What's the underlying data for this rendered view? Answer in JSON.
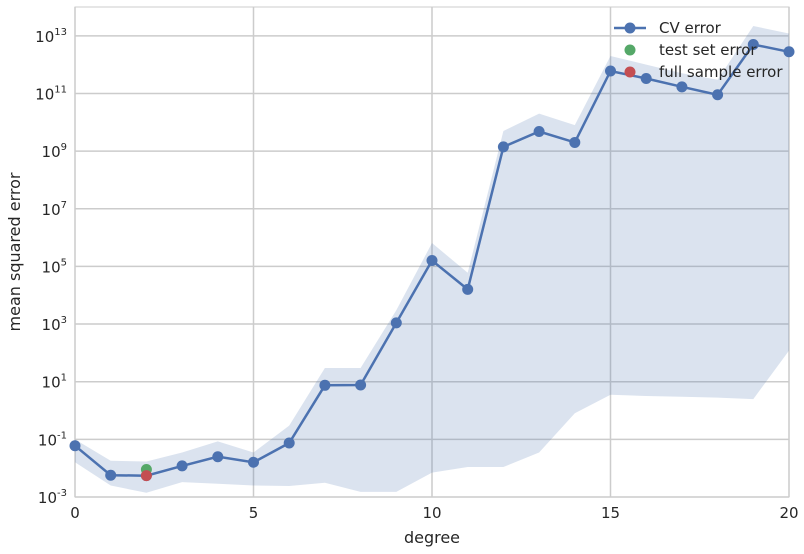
{
  "chart_data": {
    "type": "line",
    "xlabel": "degree",
    "ylabel": "mean squared error",
    "xlim": [
      0,
      20
    ],
    "ylim": [
      0.001,
      100000000000000
    ],
    "yscale": "log",
    "grid": true,
    "legend_position": "top-right",
    "x_ticks": [
      "0",
      "5",
      "10",
      "15",
      "20"
    ],
    "y_ticks": [
      {
        "base": "10",
        "exp": "-3"
      },
      {
        "base": "10",
        "exp": "-1"
      },
      {
        "base": "10",
        "exp": "1"
      },
      {
        "base": "10",
        "exp": "3"
      },
      {
        "base": "10",
        "exp": "5"
      },
      {
        "base": "10",
        "exp": "7"
      },
      {
        "base": "10",
        "exp": "9"
      },
      {
        "base": "10",
        "exp": "11"
      },
      {
        "base": "10",
        "exp": "13"
      }
    ],
    "series": [
      {
        "name": "CV error",
        "color": "#4c72b0",
        "x": [
          0,
          1,
          2,
          3,
          4,
          5,
          6,
          7,
          8,
          9,
          10,
          11,
          12,
          13,
          14,
          15,
          16,
          17,
          18,
          19,
          20
        ],
        "y": [
          0.06,
          0.0057,
          0.0055,
          0.012,
          0.025,
          0.016,
          0.075,
          7.5,
          7.7,
          1100,
          160000,
          16000,
          1400000000,
          4800000000,
          2000000000,
          600000000000,
          330000000000,
          170000000000,
          90000000000,
          5000000000000,
          2800000000000
        ],
        "band_lower": [
          0.016,
          0.0025,
          0.0014,
          0.0033,
          0.0029,
          0.0025,
          0.0024,
          0.0031,
          0.0015,
          0.0015,
          0.007,
          0.011,
          0.011,
          0.035,
          0.8,
          3.5,
          3.2,
          3.0,
          2.8,
          2.5,
          120
        ],
        "band_upper": [
          0.1,
          0.018,
          0.017,
          0.035,
          0.085,
          0.035,
          0.3,
          30,
          30,
          3000,
          650000,
          60000,
          5000000000,
          20000000000,
          8000000000,
          2000000000000,
          1000000000000,
          500000000000,
          300000000000,
          22000000000000,
          12000000000000
        ]
      },
      {
        "name": "test set error",
        "color": "#55a868",
        "x": [
          2
        ],
        "y": [
          0.009
        ]
      },
      {
        "name": "full sample error",
        "color": "#c44e52",
        "x": [
          2
        ],
        "y": [
          0.0055
        ]
      }
    ]
  }
}
